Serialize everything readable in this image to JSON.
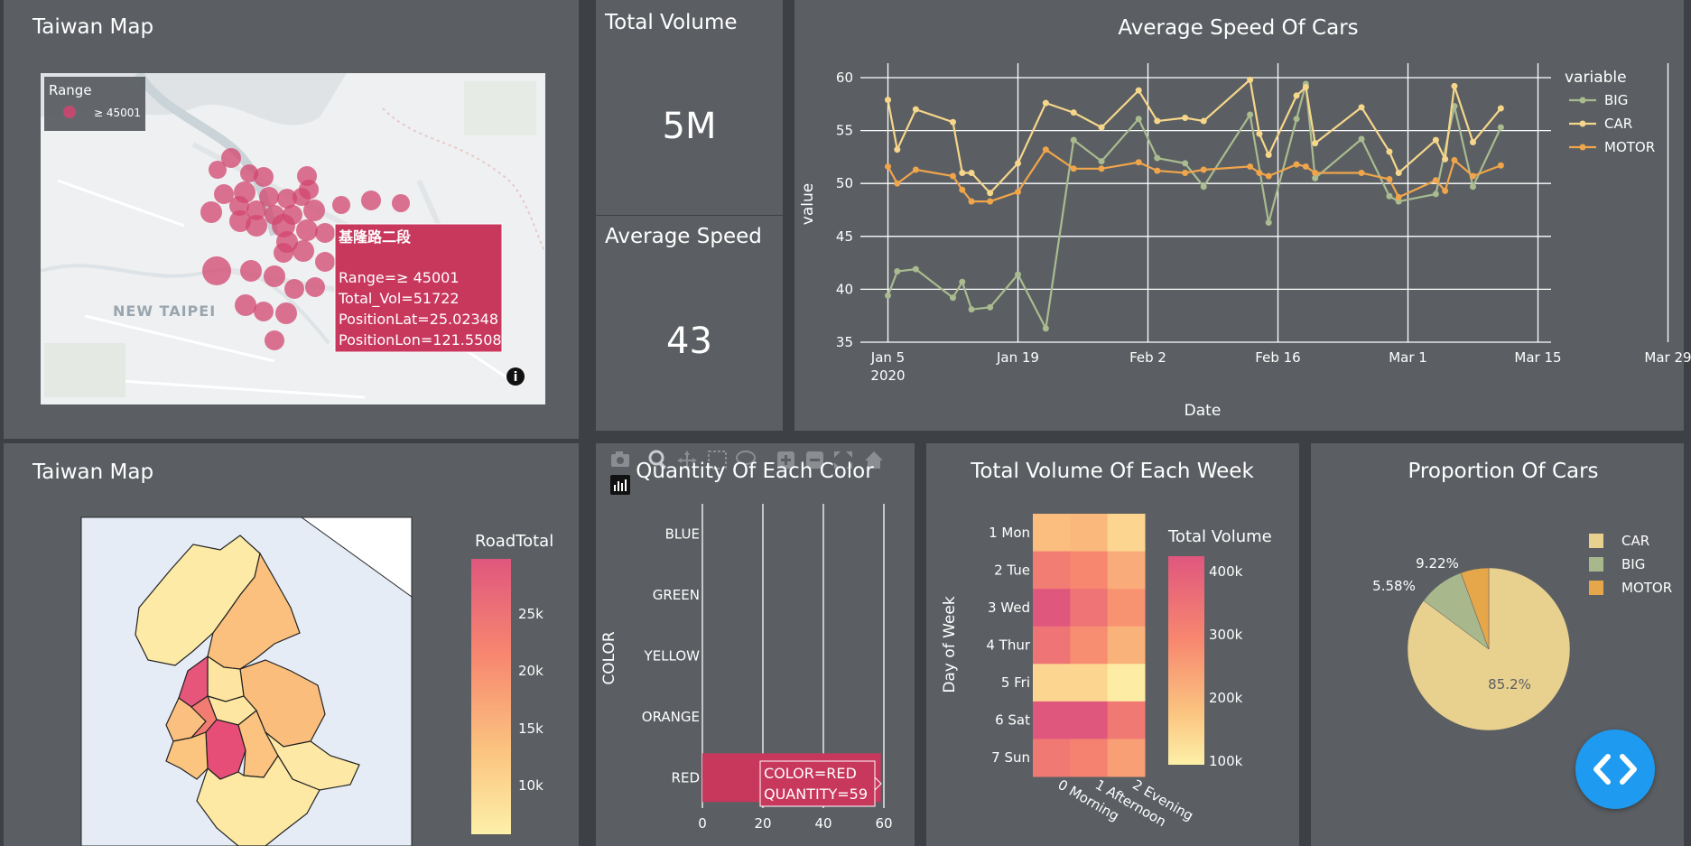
{
  "map_top": {
    "title": "Taiwan Map",
    "legend_title": "Range",
    "legend_item": "≥ 45001",
    "city_label": "NEW TAIPEI",
    "tooltip": {
      "name": "基隆路二段",
      "range": "Range=≥ 45001",
      "vol": "Total_Vol=51722",
      "lat": "PositionLat=25.02348",
      "lon": "PositionLon=121.5508"
    },
    "bubble_color": "#d1456f"
  },
  "total_volume": {
    "title": "Total Volume",
    "value": "5M"
  },
  "average_speed": {
    "title": "Average Speed",
    "value": "43"
  },
  "speed_chart": {
    "title": "Average Speed Of Cars",
    "chart_data": {
      "type": "line",
      "xlabel": "Date",
      "ylabel": "value",
      "ylim": [
        35,
        60
      ],
      "yticks": [
        "35",
        "40",
        "45",
        "50",
        "55",
        "60"
      ],
      "xticks": [
        "Jan 5",
        "Jan 19",
        "Feb 2",
        "Feb 16",
        "Mar 1",
        "Mar 15",
        "Mar 29"
      ],
      "xtick_sub": "2020",
      "legend_title": "variable",
      "series": [
        {
          "name": "BIG",
          "color": "#a9bb8f",
          "values": [
            [
              1,
              39.4
            ],
            [
              2,
              41.7
            ],
            [
              4,
              41.9
            ],
            [
              8,
              39.2
            ],
            [
              9,
              40.7
            ],
            [
              10,
              38.1
            ],
            [
              12,
              38.3
            ],
            [
              15,
              41.4
            ],
            [
              18,
              36.3
            ],
            [
              21,
              54.1
            ],
            [
              24,
              52.1
            ],
            [
              28,
              56.1
            ],
            [
              30,
              52.4
            ],
            [
              33,
              51.9
            ],
            [
              35,
              49.7
            ],
            [
              40,
              56.5
            ],
            [
              42,
              46.3
            ],
            [
              45,
              56.1
            ],
            [
              46,
              59.4
            ],
            [
              47,
              50.5
            ],
            [
              52,
              54.2
            ],
            [
              55,
              48.8
            ],
            [
              56,
              48.3
            ],
            [
              60,
              49.0
            ],
            [
              62,
              57.3
            ],
            [
              64,
              49.7
            ],
            [
              67,
              55.3
            ]
          ]
        },
        {
          "name": "CAR",
          "color": "#f6d68a",
          "values": [
            [
              1,
              57.9
            ],
            [
              2,
              53.2
            ],
            [
              4,
              57.0
            ],
            [
              8,
              55.8
            ],
            [
              9,
              51.0
            ],
            [
              10,
              51.0
            ],
            [
              12,
              49.1
            ],
            [
              15,
              51.9
            ],
            [
              18,
              57.6
            ],
            [
              21,
              56.7
            ],
            [
              24,
              55.3
            ],
            [
              28,
              58.8
            ],
            [
              30,
              55.9
            ],
            [
              33,
              56.2
            ],
            [
              35,
              55.9
            ],
            [
              40,
              59.8
            ],
            [
              41,
              54.7
            ],
            [
              42,
              52.7
            ],
            [
              45,
              58.3
            ],
            [
              46,
              59.1
            ],
            [
              47,
              53.8
            ],
            [
              52,
              57.2
            ],
            [
              55,
              53.0
            ],
            [
              56,
              51.0
            ],
            [
              60,
              54.1
            ],
            [
              61,
              52.3
            ],
            [
              62,
              59.2
            ],
            [
              64,
              53.9
            ],
            [
              67,
              57.1
            ]
          ]
        },
        {
          "name": "MOTOR",
          "color": "#f0a54a",
          "values": [
            [
              1,
              51.6
            ],
            [
              2,
              50.0
            ],
            [
              4,
              51.3
            ],
            [
              8,
              50.7
            ],
            [
              9,
              49.4
            ],
            [
              10,
              48.3
            ],
            [
              12,
              48.3
            ],
            [
              15,
              49.2
            ],
            [
              18,
              53.2
            ],
            [
              21,
              51.4
            ],
            [
              24,
              51.4
            ],
            [
              28,
              52.0
            ],
            [
              30,
              51.2
            ],
            [
              33,
              51.0
            ],
            [
              35,
              51.3
            ],
            [
              40,
              51.6
            ],
            [
              41,
              51.0
            ],
            [
              42,
              50.7
            ],
            [
              45,
              51.8
            ],
            [
              46,
              51.6
            ],
            [
              47,
              51.0
            ],
            [
              52,
              51.0
            ],
            [
              55,
              50.4
            ],
            [
              56,
              48.7
            ],
            [
              60,
              50.3
            ],
            [
              61,
              49.3
            ],
            [
              62,
              52.2
            ],
            [
              64,
              50.7
            ],
            [
              67,
              51.7
            ]
          ]
        }
      ]
    }
  },
  "map_bottom": {
    "title": "Taiwan Map",
    "colorbar_title": "RoadTotal",
    "colorbar_ticks": [
      "25k",
      "20k",
      "15k",
      "10k"
    ]
  },
  "color_chart": {
    "title": "Quantity Of Each Color",
    "chart_data": {
      "type": "bar",
      "orientation": "horizontal",
      "categories": [
        "BLUE",
        "GREEN",
        "YELLOW",
        "ORANGE",
        "RED"
      ],
      "values": [
        0,
        0,
        0,
        0,
        59
      ],
      "ylabel": "COLOR",
      "xticks": [
        "0",
        "20",
        "40",
        "60"
      ],
      "xlim": [
        0,
        60
      ]
    },
    "tooltip": [
      "COLOR=RED",
      "QUANTITY=59"
    ],
    "bar_color": "#c8375c"
  },
  "heatmap": {
    "title": "Total Volume Of Each Week",
    "chart_data": {
      "type": "heatmap",
      "y_categories": [
        "1 Mon",
        "2 Tue",
        "3 Wed",
        "4 Thur",
        "5 Fri",
        "6 Sat",
        "7 Sun"
      ],
      "x_categories": [
        "0 Morning",
        "1 Afternoon",
        "2 Evening"
      ],
      "ylabel": "Day of Week",
      "values": [
        [
          210,
          220,
          160
        ],
        [
          320,
          300,
          240
        ],
        [
          400,
          340,
          280
        ],
        [
          340,
          290,
          230
        ],
        [
          160,
          160,
          110
        ],
        [
          400,
          400,
          330
        ],
        [
          330,
          310,
          260
        ]
      ],
      "colorbar_title": "Total Volume",
      "colorbar_ticks": [
        "400k",
        "300k",
        "200k",
        "100k"
      ]
    }
  },
  "pie": {
    "title": "Proportion Of Cars",
    "chart_data": {
      "type": "pie",
      "labels": [
        "CAR",
        "BIG",
        "MOTOR"
      ],
      "values": [
        85.2,
        9.22,
        5.58
      ],
      "display": [
        "85.2%",
        "9.22%",
        "5.58%"
      ],
      "colors": [
        "#e8d08e",
        "#a9b78c",
        "#e6a64a"
      ]
    }
  }
}
